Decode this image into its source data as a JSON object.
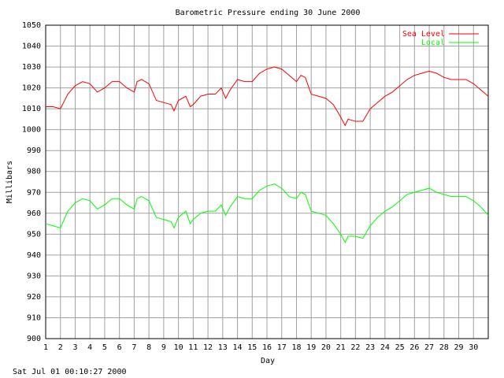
{
  "chart_data": {
    "type": "line",
    "title": "Barometric Pressure ending 30 June 2000",
    "xlabel": "Day",
    "ylabel": "Millibars",
    "footer": "Sat Jul 01 00:10:27 2000",
    "x": [
      1,
      1.5,
      2,
      2.5,
      3,
      3.5,
      4,
      4.5,
      5,
      5.5,
      6,
      6.5,
      7,
      7.2,
      7.5,
      8,
      8.5,
      9,
      9.5,
      9.7,
      10,
      10.5,
      10.8,
      11,
      11.5,
      12,
      12.5,
      12.9,
      13.2,
      13.5,
      14,
      14.5,
      15,
      15.5,
      16,
      16.5,
      17,
      17.5,
      18,
      18.3,
      18.6,
      19,
      19.5,
      20,
      20.5,
      21,
      21.3,
      21.5,
      22,
      22.5,
      23,
      23.5,
      24,
      24.5,
      25,
      25.5,
      26,
      26.5,
      27,
      27.5,
      28,
      28.5,
      29,
      29.5,
      30,
      30.5,
      31
    ],
    "series": [
      {
        "name": "Sea Level",
        "color": "#ff0000",
        "values": [
          1011,
          1011,
          1010,
          1017,
          1021,
          1023,
          1022,
          1018,
          1020,
          1023,
          1023,
          1020,
          1018,
          1023,
          1024,
          1022,
          1014,
          1013,
          1012,
          1009,
          1014,
          1016,
          1011,
          1012,
          1016,
          1017,
          1017,
          1020,
          1015,
          1019,
          1024,
          1023,
          1023,
          1027,
          1029,
          1030,
          1029,
          1026,
          1023,
          1026,
          1025,
          1017,
          1016,
          1015,
          1012,
          1006,
          1002,
          1005,
          1004,
          1004,
          1010,
          1013,
          1016,
          1018,
          1021,
          1024,
          1026,
          1027,
          1028,
          1027,
          1025,
          1024,
          1024,
          1024,
          1022,
          1019,
          1016
        ]
      },
      {
        "name": "Local",
        "color": "#00ff00",
        "values": [
          955,
          954,
          953,
          961,
          965,
          967,
          966,
          962,
          964,
          967,
          967,
          964,
          962,
          967,
          968,
          966,
          958,
          957,
          956,
          953,
          958,
          961,
          955,
          957,
          960,
          961,
          961,
          964,
          959,
          963,
          968,
          967,
          967,
          971,
          973,
          974,
          972,
          968,
          967,
          970,
          969,
          961,
          960,
          959,
          955,
          950,
          946,
          949,
          949,
          948,
          954,
          958,
          961,
          963,
          966,
          969,
          970,
          971,
          972,
          970,
          969,
          968,
          968,
          968,
          966,
          963,
          959
        ]
      }
    ],
    "xlim": [
      1,
      31
    ],
    "xticks": [
      1,
      2,
      3,
      4,
      5,
      6,
      7,
      8,
      9,
      10,
      11,
      12,
      13,
      14,
      15,
      16,
      17,
      18,
      19,
      20,
      21,
      22,
      23,
      24,
      25,
      26,
      27,
      28,
      29,
      30
    ],
    "ylim": [
      900,
      1050
    ],
    "yticks": [
      900,
      910,
      920,
      930,
      940,
      950,
      960,
      970,
      980,
      990,
      1000,
      1010,
      1020,
      1030,
      1040,
      1050
    ],
    "grid": true,
    "legend": "upper right"
  }
}
